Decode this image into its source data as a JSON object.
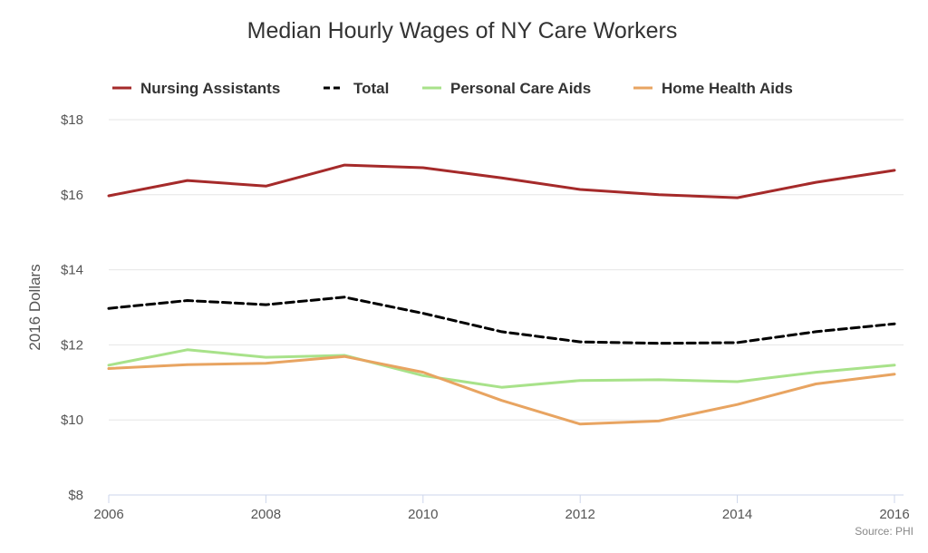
{
  "chart_data": {
    "type": "line",
    "title": "Median Hourly Wages of NY Care Workers",
    "ylabel": "2016 Dollars",
    "xlabel": "",
    "credit": "Source: PHI",
    "x": [
      2006,
      2007,
      2008,
      2009,
      2010,
      2011,
      2012,
      2013,
      2014,
      2015,
      2016
    ],
    "x_ticks": [
      "2006",
      "2008",
      "2010",
      "2012",
      "2014",
      "2016"
    ],
    "x_tick_values": [
      2006,
      2008,
      2010,
      2012,
      2014,
      2016
    ],
    "y_ticks": [
      "$8",
      "$10",
      "$12",
      "$14",
      "$16",
      "$18"
    ],
    "y_tick_values": [
      8,
      10,
      12,
      14,
      16,
      18
    ],
    "xlim": [
      2006,
      2016
    ],
    "ylim": [
      8,
      18
    ],
    "grid": true,
    "legend_position": "top",
    "series": [
      {
        "name": "Nursing Assistants",
        "color": "#a52a2a",
        "dash": "solid",
        "values": [
          15.97,
          16.38,
          16.23,
          16.79,
          16.72,
          16.45,
          16.14,
          16.0,
          15.92,
          16.33,
          16.65
        ]
      },
      {
        "name": "Total",
        "color": "#000000",
        "dash": "dashed",
        "values": [
          12.97,
          13.18,
          13.07,
          13.27,
          12.84,
          12.35,
          12.08,
          12.04,
          12.06,
          12.35,
          12.56
        ]
      },
      {
        "name": "Personal Care Aids",
        "color": "#a8e28a",
        "dash": "solid",
        "values": [
          11.46,
          11.87,
          11.67,
          11.72,
          11.18,
          10.87,
          11.05,
          11.07,
          11.02,
          11.27,
          11.46
        ]
      },
      {
        "name": "Home Health Aids",
        "color": "#e8a461",
        "dash": "solid",
        "values": [
          11.37,
          11.47,
          11.51,
          11.69,
          11.27,
          10.52,
          9.89,
          9.97,
          10.41,
          10.96,
          11.22
        ]
      }
    ]
  }
}
